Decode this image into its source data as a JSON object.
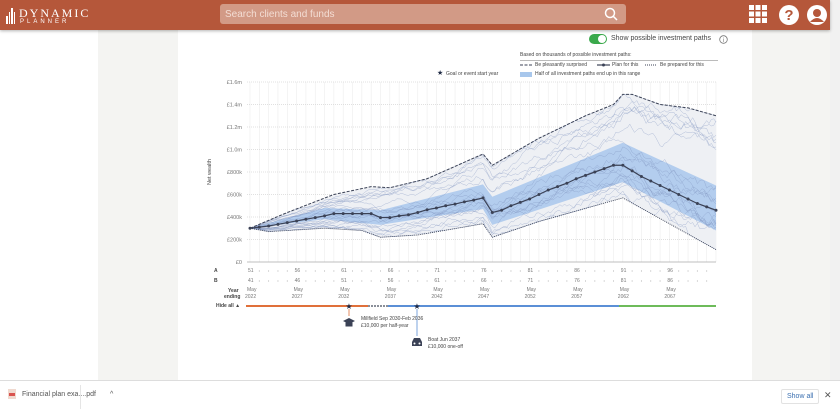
{
  "header": {
    "logo_line1": "DYNAMIC",
    "logo_line2": "PLANNER",
    "search_placeholder": "Search clients and funds",
    "icons": [
      "search-icon",
      "apps-grid-icon",
      "help-icon",
      "user-icon"
    ],
    "color": "#b5573a"
  },
  "controls": {
    "toggle_label": "Show possible investment paths",
    "toggle_on": true
  },
  "legend": {
    "heading": "Based on thousands of possible investment paths:",
    "pleasant": "Be pleasantly surprised",
    "plan": "Plan for this",
    "prepared": "Be prepared for this",
    "band": "Half of all investment paths end up in this range",
    "goal": "Goal or event start year"
  },
  "chart_data": {
    "type": "line",
    "ylabel": "Net wealth",
    "ylim": [
      0,
      1600000
    ],
    "yticks": [
      "£0",
      "£200k",
      "£400k",
      "£600k",
      "£800k",
      "£1.0m",
      "£1.2m",
      "£1.4m",
      "£1.6m"
    ],
    "xlim": [
      2022,
      2072
    ],
    "grid": true,
    "plan": {
      "x": [
        2022,
        2023,
        2024,
        2025,
        2026,
        2027,
        2028,
        2029,
        2030,
        2031,
        2032,
        2033,
        2034,
        2035,
        2036,
        2037,
        2038,
        2039,
        2040,
        2041,
        2042,
        2043,
        2044,
        2045,
        2046,
        2047,
        2048,
        2049,
        2050,
        2051,
        2052,
        2053,
        2054,
        2055,
        2056,
        2057,
        2058,
        2059,
        2060,
        2061,
        2062,
        2063,
        2064,
        2065,
        2066,
        2067,
        2068,
        2069,
        2070,
        2071,
        2072
      ],
      "y": [
        300,
        310,
        320,
        335,
        350,
        365,
        380,
        395,
        410,
        430,
        430,
        430,
        430,
        430,
        395,
        395,
        410,
        420,
        440,
        465,
        480,
        500,
        515,
        535,
        550,
        570,
        440,
        460,
        500,
        530,
        560,
        600,
        640,
        670,
        700,
        740,
        770,
        800,
        830,
        860,
        860,
        810,
        760,
        720,
        680,
        640,
        600,
        560,
        520,
        490,
        460
      ]
    },
    "pleasant": {
      "x": [
        2022,
        2026,
        2031,
        2035,
        2037,
        2041,
        2047,
        2048,
        2053,
        2058,
        2061,
        2062,
        2063,
        2066,
        2069,
        2072
      ],
      "y": [
        300,
        440,
        600,
        670,
        660,
        740,
        960,
        860,
        1100,
        1300,
        1400,
        1490,
        1490,
        1400,
        1370,
        1300
      ]
    },
    "prepared": {
      "x": [
        2022,
        2024,
        2030,
        2034,
        2036,
        2040,
        2047,
        2048,
        2053,
        2062,
        2072
      ],
      "y": [
        300,
        270,
        300,
        280,
        220,
        240,
        340,
        220,
        360,
        570,
        110
      ]
    },
    "band_upper": {
      "x": [
        2022,
        2030,
        2036,
        2047,
        2048,
        2062,
        2072
      ],
      "y": [
        300,
        480,
        460,
        690,
        580,
        1060,
        680
      ]
    },
    "band_lower": {
      "x": [
        2022,
        2030,
        2036,
        2047,
        2048,
        2062,
        2072
      ],
      "y": [
        300,
        380,
        330,
        470,
        330,
        710,
        280
      ]
    },
    "y_units": "£000"
  },
  "axis": {
    "row_a_label": "A",
    "row_b_label": "B",
    "year_label1": "Year",
    "year_label2": "ending",
    "ages_a": [
      "51",
      "56",
      "61",
      "66",
      "71",
      "76",
      "81",
      "86",
      "91",
      "96"
    ],
    "ages_b": [
      "41",
      "46",
      "51",
      "56",
      "61",
      "66",
      "71",
      "76",
      "81",
      "86"
    ],
    "months": [
      "May",
      "May",
      "May",
      "May",
      "May",
      "May",
      "May",
      "May",
      "May",
      "May"
    ],
    "years": [
      "2022",
      "2027",
      "2032",
      "2037",
      "2042",
      "2047",
      "2052",
      "2057",
      "2062",
      "2067"
    ]
  },
  "timeline": {
    "hide_all": "Hide all ▲",
    "colors": {
      "orange": "#e0703a",
      "blue": "#5b8fd6",
      "green": "#6dbb5a",
      "gray": "#8a8f99"
    }
  },
  "events": [
    {
      "icon": "graduation-cap-icon",
      "line1": "Millfield Sep 2030-Feb 2036",
      "line2": "£10,000 per half-year"
    },
    {
      "icon": "car-icon",
      "line1": "Boat Jun 2037",
      "line2": "£10,000 one-off"
    }
  ],
  "downloads": {
    "file": "Financial plan exa....pdf",
    "show_all": "Show all"
  }
}
